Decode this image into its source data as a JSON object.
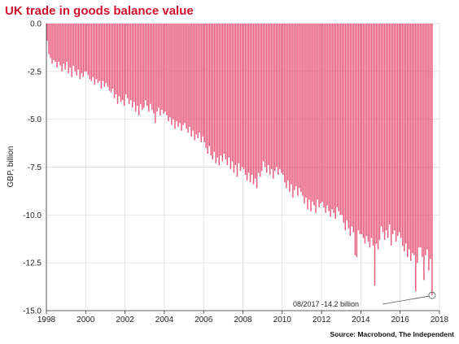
{
  "chart_data": {
    "type": "bar",
    "title": "UK trade in goods balance value",
    "ylabel": "GBP, billion",
    "xlabel": "",
    "source": "Source: Macrobond, The Independent",
    "annotation": {
      "text": "08/2017 -14.2 billion",
      "x": "2017-08",
      "y": -14.2
    },
    "ylim": [
      -15.0,
      0.0
    ],
    "y_ticks": [
      "0.0",
      "-2.5",
      "-5.0",
      "-7.5",
      "-10.0",
      "-12.5",
      "-15.0"
    ],
    "x_ticks": [
      "1998",
      "2000",
      "2002",
      "2004",
      "2006",
      "2008",
      "2010",
      "2012",
      "2014",
      "2016",
      "2018"
    ],
    "x_range": [
      "1998-01",
      "2018-01"
    ],
    "frequency": "monthly",
    "series_start": "1998-01",
    "grid": {
      "vertical": true,
      "horizontal": true
    },
    "colors": {
      "bar": "#e8587a",
      "title": "#d1102e",
      "grid": "#d9d9d9"
    },
    "series": [
      {
        "values": [
          -0.9,
          -1.6,
          -1.8,
          -2.1,
          -1.9,
          -2.0,
          -2.3,
          -2.0,
          -2.2,
          -2.5,
          -2.1,
          -2.4,
          -2.0,
          -2.6,
          -2.3,
          -2.8,
          -2.2,
          -2.5,
          -2.7,
          -2.4,
          -2.9,
          -2.6,
          -2.8,
          -2.5,
          -2.5,
          -2.7,
          -2.9,
          -3.0,
          -2.8,
          -3.2,
          -2.9,
          -3.1,
          -3.0,
          -3.4,
          -3.0,
          -3.3,
          -3.1,
          -3.3,
          -3.5,
          -3.6,
          -3.4,
          -3.9,
          -3.7,
          -4.2,
          -3.8,
          -4.1,
          -4.0,
          -4.3,
          -3.7,
          -3.9,
          -4.2,
          -4.0,
          -4.4,
          -4.1,
          -4.6,
          -4.3,
          -4.8,
          -4.2,
          -4.5,
          -4.4,
          -4.0,
          -4.3,
          -4.6,
          -4.2,
          -4.5,
          -4.7,
          -5.2,
          -4.6,
          -4.4,
          -4.8,
          -4.5,
          -4.7,
          -4.6,
          -4.8,
          -5.1,
          -4.9,
          -5.3,
          -5.0,
          -5.5,
          -5.1,
          -5.4,
          -5.2,
          -5.6,
          -5.3,
          -5.2,
          -5.5,
          -5.7,
          -5.4,
          -5.9,
          -5.6,
          -6.1,
          -5.8,
          -6.0,
          -5.7,
          -6.2,
          -5.9,
          -6.2,
          -6.5,
          -6.8,
          -6.4,
          -6.9,
          -7.1,
          -6.7,
          -7.3,
          -7.0,
          -7.4,
          -6.9,
          -7.2,
          -6.8,
          -7.1,
          -7.4,
          -7.0,
          -7.6,
          -7.2,
          -7.8,
          -7.4,
          -8.0,
          -7.3,
          -7.7,
          -7.5,
          -7.6,
          -7.9,
          -8.2,
          -7.8,
          -8.3,
          -7.9,
          -8.4,
          -8.1,
          -8.6,
          -7.8,
          -8.0,
          -7.7,
          -7.2,
          -7.5,
          -7.8,
          -7.4,
          -7.9,
          -7.6,
          -8.1,
          -7.7,
          -7.5,
          -7.9,
          -7.6,
          -7.8,
          -7.9,
          -8.3,
          -8.6,
          -8.2,
          -8.8,
          -8.4,
          -9.1,
          -8.7,
          -8.5,
          -9.0,
          -8.6,
          -8.8,
          -9.0,
          -9.4,
          -9.1,
          -9.7,
          -9.2,
          -9.8,
          -9.3,
          -9.5,
          -9.9,
          -9.2,
          -9.6,
          -9.4,
          -9.3,
          -9.6,
          -9.9,
          -9.5,
          -9.8,
          -10.1,
          -9.7,
          -9.9,
          -10.2,
          -9.6,
          -9.8,
          -10.0,
          -10.0,
          -10.4,
          -10.8,
          -10.3,
          -10.7,
          -11.1,
          -10.6,
          -10.9,
          -12.1,
          -12.2,
          -10.8,
          -11.0,
          -11.0,
          -11.2,
          -11.5,
          -11.1,
          -11.4,
          -11.7,
          -11.2,
          -11.6,
          -13.7,
          -11.5,
          -11.8,
          -11.3,
          -10.6,
          -10.9,
          -11.3,
          -10.8,
          -11.2,
          -10.5,
          -11.6,
          -11.0,
          -10.8,
          -11.4,
          -11.1,
          -10.9,
          -11.2,
          -11.6,
          -11.9,
          -11.5,
          -12.2,
          -11.8,
          -12.4,
          -12.0,
          -12.1,
          -14.0,
          -12.5,
          -11.7,
          -11.7,
          -12.2,
          -13.4,
          -12.1,
          -11.8,
          -12.9,
          -12.3,
          -14.2
        ]
      }
    ]
  }
}
